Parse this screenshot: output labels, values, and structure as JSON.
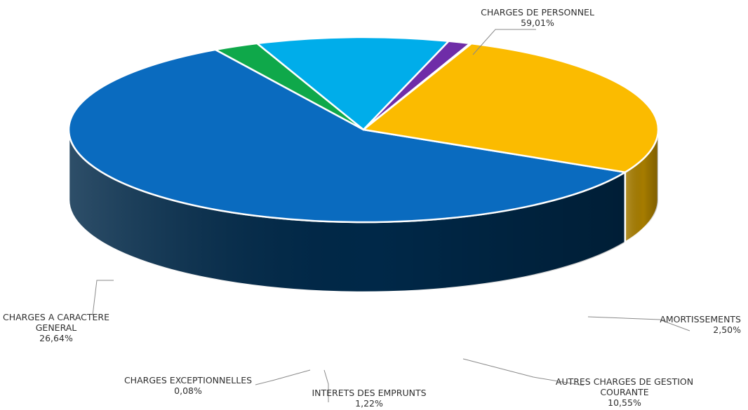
{
  "chart_data": {
    "type": "pie",
    "style": "3d-exploded-none",
    "series": [
      {
        "name": "CHARGES DE PERSONNEL",
        "value": 59.01,
        "label": "59,01%",
        "color": "#0a6bbf",
        "side_color": "#002848",
        "lines": [
          "CHARGES DE PERSONNEL",
          "59,01%"
        ]
      },
      {
        "name": "AMORTISSEMENTS",
        "value": 2.5,
        "label": "2,50%",
        "color": "#0fa84a",
        "side_color": "#083d1c",
        "lines": [
          "AMORTISSEMENTS",
          "2,50%"
        ]
      },
      {
        "name": "AUTRES CHARGES DE GESTION COURANTE",
        "value": 10.55,
        "label": "10,55%",
        "color": "#00adea",
        "side_color": "#0b5273",
        "lines": [
          "AUTRES CHARGES DE GESTION",
          "COURANTE",
          "10,55%"
        ]
      },
      {
        "name": "INTERETS DES EMPRUNTS",
        "value": 1.22,
        "label": "1,22%",
        "color": "#6f2da8",
        "side_color": "#3b1764",
        "lines": [
          "INTERETS DES EMPRUNTS",
          "1,22%"
        ]
      },
      {
        "name": "CHARGES EXCEPTIONNELLES",
        "value": 0.08,
        "label": "0,08%",
        "color": "#c0c0c0",
        "side_color": "#707070",
        "lines": [
          "CHARGES EXCEPTIONNELLES",
          "0,08%"
        ]
      },
      {
        "name": "CHARGES A CARACTERE GENERAL",
        "value": 26.64,
        "label": "26,64%",
        "color": "#fbbb00",
        "side_color": "#a67c00",
        "lines": [
          "CHARGES A CARACTERE",
          "GENERAL",
          "26,64%"
        ]
      }
    ],
    "legend": "none",
    "data_labels": "outside-with-leader-lines"
  }
}
